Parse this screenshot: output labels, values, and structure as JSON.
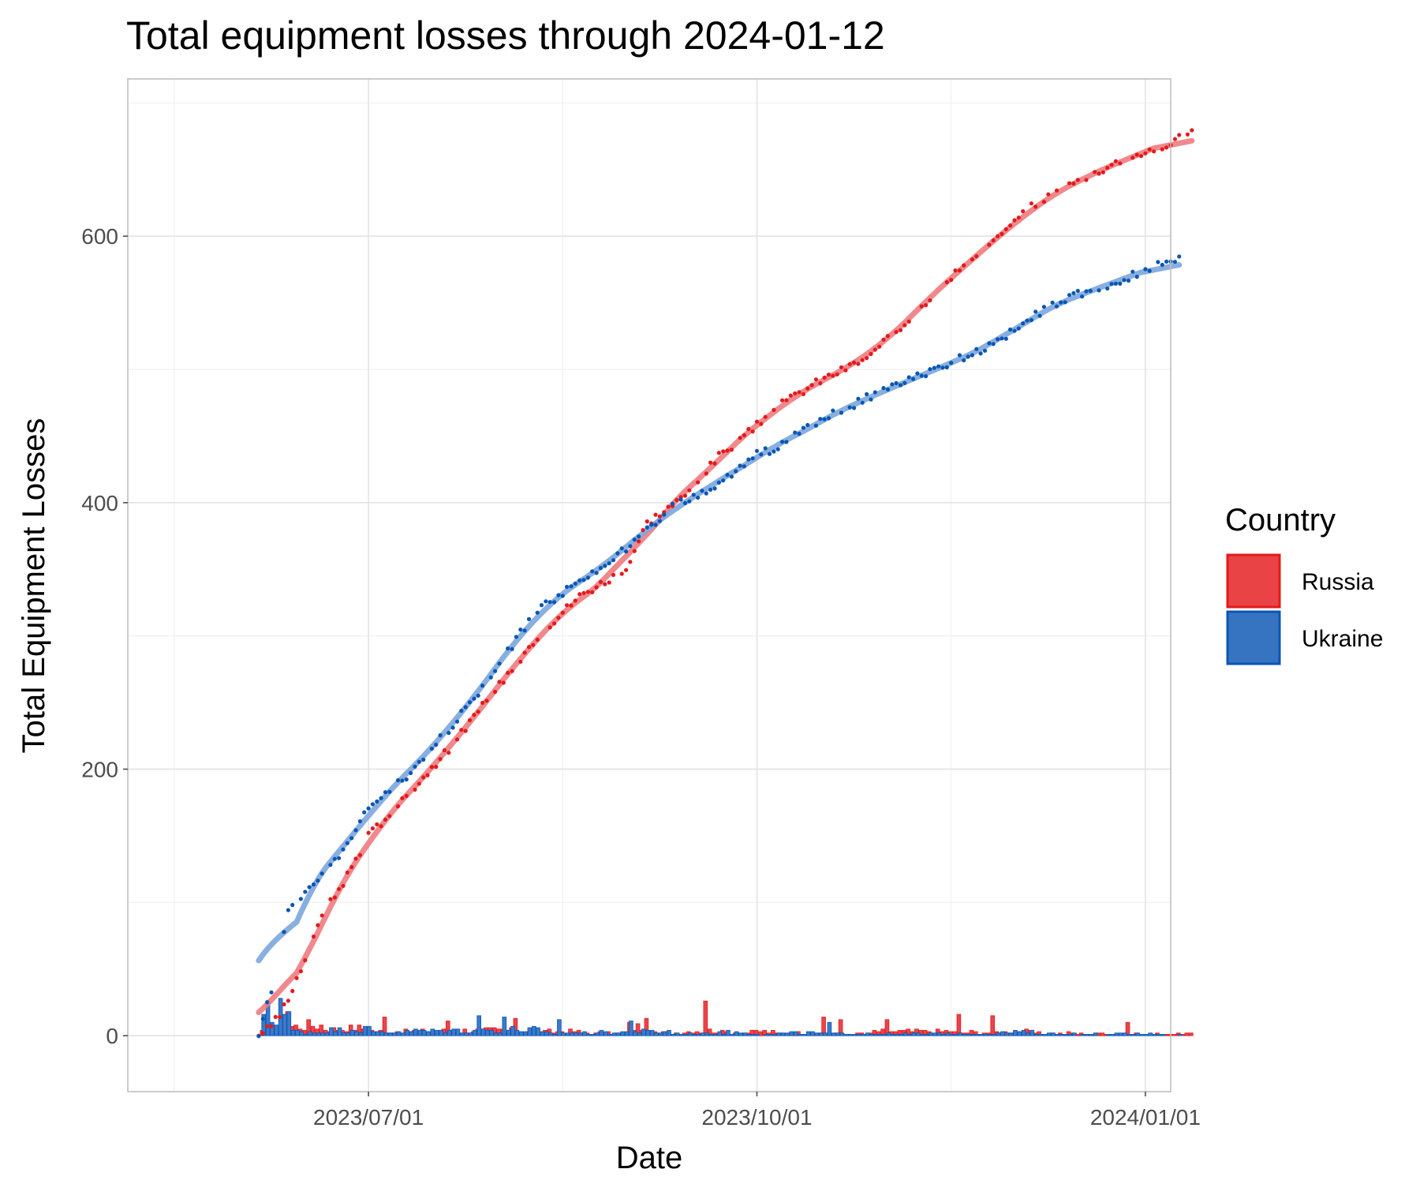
{
  "chart_data": {
    "type": "line",
    "title": "Total equipment losses through 2024-01-12",
    "xlabel": "Date",
    "ylabel": "Total Equipment Losses",
    "x_axis": {
      "type": "date",
      "range": [
        "2023-05-05",
        "2024-01-07"
      ],
      "ticks": [
        {
          "date": "2023-07-01",
          "label": "2023/07/01"
        },
        {
          "date": "2023-10-01",
          "label": "2023/10/01"
        },
        {
          "date": "2024-01-01",
          "label": "2024/01/01"
        }
      ],
      "minor_ticks": [
        "2023-05-16",
        "2023-08-16",
        "2023-11-16"
      ]
    },
    "y_axis": {
      "range": [
        -42,
        718
      ],
      "ticks": [
        {
          "value": 0,
          "label": "0"
        },
        {
          "value": 200,
          "label": "200"
        },
        {
          "value": 400,
          "label": "400"
        },
        {
          "value": 600,
          "label": "600"
        }
      ],
      "minor_ticks": [
        100,
        300,
        500,
        700
      ]
    },
    "grid": true,
    "legend": {
      "title": "Country",
      "position": "right",
      "items": [
        {
          "label": "Russia",
          "color": "#e41a1c"
        },
        {
          "label": "Ukraine",
          "color": "#0a56b5"
        }
      ]
    },
    "series": [
      {
        "name": "Russia",
        "color": "#e41a1c",
        "fill": "#e8454b",
        "smooth_color": "#ee7b80",
        "cumulative_key_points": [
          [
            "2023-06-05",
            0
          ],
          [
            "2023-06-10",
            15
          ],
          [
            "2023-06-15",
            50
          ],
          [
            "2023-06-20",
            90
          ],
          [
            "2023-06-25",
            115
          ],
          [
            "2023-07-01",
            150
          ],
          [
            "2023-07-10",
            180
          ],
          [
            "2023-07-20",
            215
          ],
          [
            "2023-07-30",
            255
          ],
          [
            "2023-08-10",
            300
          ],
          [
            "2023-08-20",
            330
          ],
          [
            "2023-08-31",
            350
          ],
          [
            "2023-09-05",
            385
          ],
          [
            "2023-09-14",
            405
          ],
          [
            "2023-09-22",
            435
          ],
          [
            "2023-09-30",
            455
          ],
          [
            "2023-10-05",
            470
          ],
          [
            "2023-10-15",
            490
          ],
          [
            "2023-10-28",
            510
          ],
          [
            "2023-11-05",
            535
          ],
          [
            "2023-11-16",
            570
          ],
          [
            "2023-11-27",
            598
          ],
          [
            "2023-12-05",
            622
          ],
          [
            "2023-12-15",
            640
          ],
          [
            "2023-12-25",
            655
          ],
          [
            "2024-01-05",
            668
          ],
          [
            "2024-01-12",
            678
          ]
        ],
        "daily_spikes": [
          [
            "2023-06-12",
            18
          ],
          [
            "2023-07-05",
            14
          ],
          [
            "2023-07-20",
            11
          ],
          [
            "2023-08-05",
            13
          ],
          [
            "2023-09-05",
            13
          ],
          [
            "2023-09-19",
            26
          ],
          [
            "2023-10-17",
            14
          ],
          [
            "2023-10-21",
            12
          ],
          [
            "2023-11-01",
            12
          ],
          [
            "2023-11-18",
            16
          ],
          [
            "2023-11-26",
            15
          ],
          [
            "2023-12-28",
            10
          ]
        ]
      },
      {
        "name": "Ukraine",
        "color": "#0a56b5",
        "fill": "#3a7ac9",
        "smooth_color": "#7ba6dc",
        "cumulative_key_points": [
          [
            "2023-06-05",
            2
          ],
          [
            "2023-06-08",
            35
          ],
          [
            "2023-06-10",
            65
          ],
          [
            "2023-06-12",
            95
          ],
          [
            "2023-06-15",
            105
          ],
          [
            "2023-06-20",
            120
          ],
          [
            "2023-06-25",
            140
          ],
          [
            "2023-07-01",
            170
          ],
          [
            "2023-07-10",
            195
          ],
          [
            "2023-07-20",
            230
          ],
          [
            "2023-07-30",
            270
          ],
          [
            "2023-08-10",
            320
          ],
          [
            "2023-08-20",
            340
          ],
          [
            "2023-08-31",
            365
          ],
          [
            "2023-09-10",
            395
          ],
          [
            "2023-09-20",
            410
          ],
          [
            "2023-09-30",
            435
          ],
          [
            "2023-10-05",
            440
          ],
          [
            "2023-10-15",
            460
          ],
          [
            "2023-10-28",
            480
          ],
          [
            "2023-11-05",
            490
          ],
          [
            "2023-11-16",
            505
          ],
          [
            "2023-11-27",
            520
          ],
          [
            "2023-12-05",
            540
          ],
          [
            "2023-12-15",
            555
          ],
          [
            "2023-12-25",
            565
          ],
          [
            "2024-01-05",
            580
          ],
          [
            "2024-01-09",
            582
          ]
        ],
        "daily_spikes": [
          [
            "2023-06-07",
            25
          ],
          [
            "2023-06-10",
            28
          ],
          [
            "2023-06-12",
            18
          ],
          [
            "2023-07-27",
            15
          ],
          [
            "2023-08-02",
            14
          ],
          [
            "2023-08-15",
            12
          ],
          [
            "2023-09-01",
            11
          ],
          [
            "2023-10-18",
            10
          ]
        ]
      }
    ]
  }
}
